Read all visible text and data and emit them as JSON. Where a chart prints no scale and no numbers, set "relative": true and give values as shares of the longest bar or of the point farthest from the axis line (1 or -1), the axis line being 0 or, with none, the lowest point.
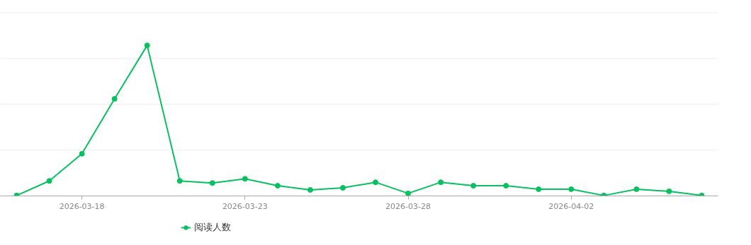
{
  "chart_data": {
    "type": "line",
    "relative": true,
    "x": [
      "2026-03-16",
      "2026-03-17",
      "2026-03-18",
      "2026-03-19",
      "2026-03-20",
      "2026-03-21",
      "2026-03-22",
      "2026-03-23",
      "2026-03-24",
      "2026-03-25",
      "2026-03-26",
      "2026-03-27",
      "2026-03-28",
      "2026-03-29",
      "2026-03-30",
      "2026-03-31",
      "2026-04-01",
      "2026-04-02",
      "2026-04-03",
      "2026-04-04",
      "2026-04-05",
      "2026-04-06"
    ],
    "series": [
      {
        "name": "阅读人数",
        "color": "#07c160",
        "values": [
          0,
          0.097,
          0.278,
          0.644,
          1,
          0.097,
          0.083,
          0.111,
          0.065,
          0.037,
          0.051,
          0.088,
          0.014,
          0.088,
          0.065,
          0.065,
          0.042,
          0.042,
          0,
          0.042,
          0.028,
          0
        ]
      }
    ],
    "xlim": [
      "2026-03-15T12:00",
      "2026-04-06T12:00"
    ],
    "xticks": [
      "2026-03-18",
      "2026-03-23",
      "2026-03-28",
      "2026-04-02"
    ],
    "marker": "circle",
    "line_style": "solid",
    "grid": "y",
    "legend": "bottom"
  }
}
